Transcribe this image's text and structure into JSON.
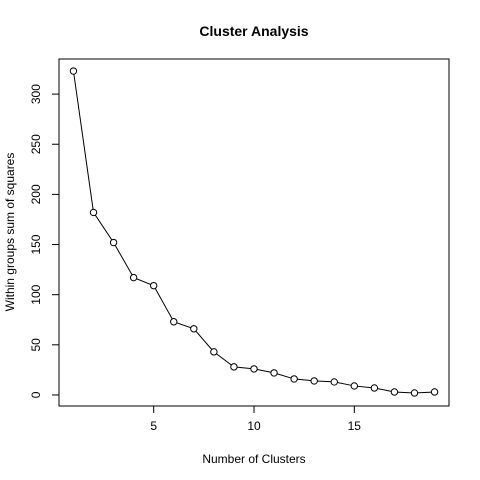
{
  "chart_data": {
    "type": "line",
    "title": "Cluster Analysis",
    "xlabel": "Number of Clusters",
    "ylabel": "Within groups sum of squares",
    "xlim": [
      0.28,
      19.72
    ],
    "ylim": [
      -11,
      335
    ],
    "xticks": [
      5,
      10,
      15
    ],
    "yticks": [
      0,
      50,
      100,
      150,
      200,
      250,
      300
    ],
    "grid": false,
    "marker": "open-circle",
    "line_color": "#000000",
    "series": [
      {
        "x": [
          1,
          2,
          3,
          4,
          5,
          6,
          7,
          8,
          9,
          10,
          11,
          12,
          13,
          14,
          15,
          16,
          17,
          18,
          19
        ],
        "values": [
          323,
          182,
          152,
          117,
          109,
          73,
          66,
          43,
          28,
          26,
          22,
          16,
          14,
          13,
          9,
          7,
          3,
          2,
          3
        ]
      }
    ]
  }
}
